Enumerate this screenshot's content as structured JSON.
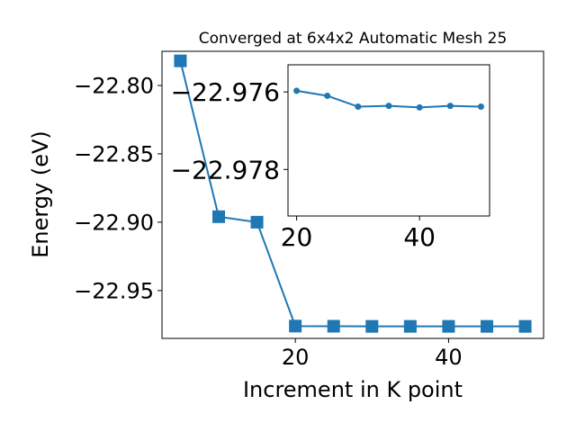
{
  "chart_data": [
    {
      "type": "line",
      "title": "Converged at 6x4x2 Automatic Mesh 25",
      "xlabel": "Increment in K point",
      "ylabel": "Energy (eV)",
      "xlim": [
        2.6,
        52.4
      ],
      "ylim": [
        -22.985,
        -22.775
      ],
      "xticks": [
        20,
        40
      ],
      "yticks": [
        -22.8,
        -22.85,
        -22.9,
        -22.95
      ],
      "xtick_labels": [
        "20",
        "40"
      ],
      "ytick_labels": [
        "−22.80",
        "−22.85",
        "−22.90",
        "−22.95"
      ],
      "marker": "square",
      "color": "#1f77b4",
      "x": [
        5,
        10,
        15,
        20,
        25,
        30,
        35,
        40,
        45,
        50
      ],
      "y": [
        -22.782,
        -22.896,
        -22.9,
        -22.976,
        -22.9761,
        -22.9762,
        -22.9762,
        -22.9762,
        -22.9762,
        -22.9762
      ]
    },
    {
      "type": "line",
      "title": "",
      "xlabel": "",
      "ylabel": "",
      "xlim": [
        18.6,
        51.4
      ],
      "ylim": [
        -22.9792,
        -22.9753
      ],
      "xticks": [
        20,
        40
      ],
      "yticks": [
        -22.978,
        -22.976
      ],
      "xtick_labels": [
        "20",
        "40"
      ],
      "ytick_labels": [
        "−22.978",
        "−22.976"
      ],
      "marker": "circle",
      "color": "#1f77b4",
      "x": [
        20,
        25,
        30,
        35,
        40,
        45,
        50
      ],
      "y": [
        -22.97597,
        -22.9761,
        -22.97638,
        -22.97636,
        -22.9764,
        -22.97636,
        -22.97638
      ]
    }
  ]
}
